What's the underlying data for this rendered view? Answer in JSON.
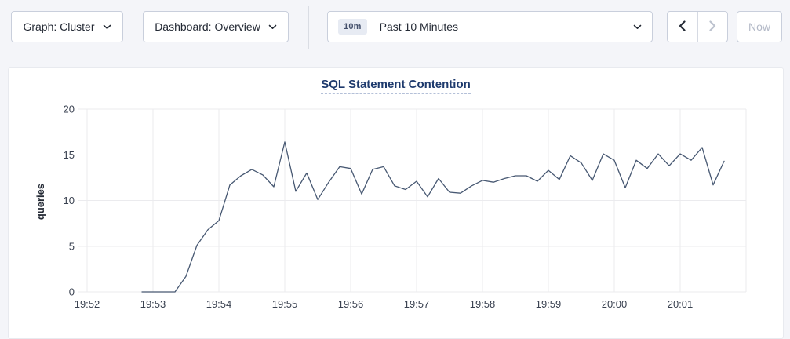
{
  "toolbar": {
    "graph_dropdown": {
      "label": "Graph: Cluster"
    },
    "dashboard_dropdown": {
      "label": "Dashboard: Overview"
    },
    "time_selector": {
      "badge": "10m",
      "value": "Past 10 Minutes"
    },
    "now_button": {
      "label": "Now"
    }
  },
  "chart_data": {
    "type": "line",
    "title": "SQL Statement Contention",
    "xlabel": "",
    "ylabel": "queries",
    "ylim": [
      0,
      20
    ],
    "y_ticks": [
      0,
      5,
      10,
      15,
      20
    ],
    "x_ticks": [
      "19:52",
      "19:53",
      "19:54",
      "19:55",
      "19:56",
      "19:57",
      "19:58",
      "19:59",
      "20:00",
      "20:01"
    ],
    "x_range": [
      "19:52:00",
      "20:02:00"
    ],
    "grid": true,
    "legend": "none",
    "line_color": "#475872",
    "series": [
      {
        "name": "queries",
        "t_start": "19:52:50",
        "step_seconds": 10,
        "values": [
          0,
          0,
          0,
          0,
          1.7,
          5.1,
          6.8,
          7.8,
          11.7,
          12.7,
          13.4,
          12.8,
          11.5,
          16.4,
          11.0,
          13.0,
          10.1,
          12.0,
          13.7,
          13.5,
          10.7,
          13.4,
          13.7,
          11.6,
          11.2,
          12.1,
          10.4,
          12.4,
          10.9,
          10.8,
          11.6,
          12.2,
          12.0,
          12.4,
          12.7,
          12.7,
          12.1,
          13.3,
          12.3,
          14.9,
          14.1,
          12.2,
          15.1,
          14.4,
          11.4,
          14.4,
          13.5,
          15.1,
          13.8,
          15.1,
          14.4,
          15.8,
          11.7,
          14.3
        ]
      }
    ]
  }
}
